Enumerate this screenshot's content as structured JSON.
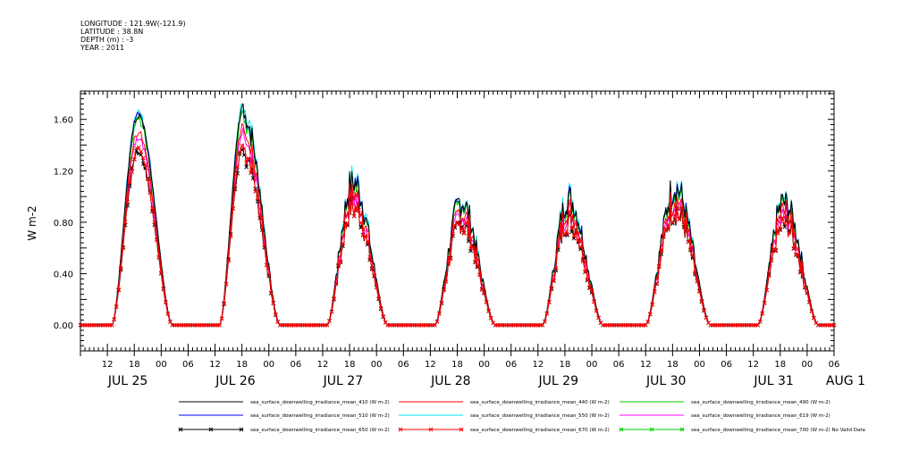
{
  "header": {
    "longitude": "LONGITUDE : 121.9W(-121.9)",
    "latitude": "LATITUDE : 38.8N",
    "depth": "DEPTH (m) : -3",
    "year": "YEAR : 2011"
  },
  "chart_data": {
    "type": "line",
    "title": "",
    "xlabel": "",
    "ylabel": "W m-2",
    "ylim": [
      -0.2,
      1.82
    ],
    "yticks": [
      "0.00",
      "0.40",
      "0.80",
      "1.20",
      "1.60"
    ],
    "ytick_values": [
      0.0,
      0.4,
      0.8,
      1.2,
      1.6
    ],
    "xlim_hours": [
      6,
      174
    ],
    "xtick_hour_labels": [
      {
        "h": 12,
        "label": "12"
      },
      {
        "h": 18,
        "label": "18"
      },
      {
        "h": 24,
        "label": "00"
      },
      {
        "h": 30,
        "label": "06"
      },
      {
        "h": 36,
        "label": "12"
      },
      {
        "h": 42,
        "label": "18"
      },
      {
        "h": 48,
        "label": "00"
      },
      {
        "h": 54,
        "label": "06"
      },
      {
        "h": 60,
        "label": "12"
      },
      {
        "h": 66,
        "label": "18"
      },
      {
        "h": 72,
        "label": "00"
      },
      {
        "h": 78,
        "label": "06"
      },
      {
        "h": 84,
        "label": "12"
      },
      {
        "h": 90,
        "label": "18"
      },
      {
        "h": 96,
        "label": "00"
      },
      {
        "h": 102,
        "label": "06"
      },
      {
        "h": 108,
        "label": "12"
      },
      {
        "h": 114,
        "label": "18"
      },
      {
        "h": 120,
        "label": "00"
      },
      {
        "h": 126,
        "label": "06"
      },
      {
        "h": 132,
        "label": "12"
      },
      {
        "h": 138,
        "label": "18"
      },
      {
        "h": 144,
        "label": "00"
      },
      {
        "h": 150,
        "label": "06"
      },
      {
        "h": 156,
        "label": "12"
      },
      {
        "h": 162,
        "label": "18"
      },
      {
        "h": 168,
        "label": "00"
      },
      {
        "h": 174,
        "label": "06"
      }
    ],
    "xtick_day_labels": [
      {
        "h": 9,
        "label": "JUL 25"
      },
      {
        "h": 33,
        "label": "JUL 26"
      },
      {
        "h": 57,
        "label": "JUL 27"
      },
      {
        "h": 81,
        "label": "JUL 28"
      },
      {
        "h": 105,
        "label": "JUL 29"
      },
      {
        "h": 129,
        "label": "JUL 30"
      },
      {
        "h": 153,
        "label": "JUL 31"
      },
      {
        "h": 169,
        "label": "AUG  1"
      }
    ],
    "days": [
      {
        "day": "JUL 25",
        "rise_h": 13.0,
        "set_h": 26.5,
        "peak_h": 18.8,
        "peak_410": 1.63,
        "shape": "smooth"
      },
      {
        "day": "JUL 26",
        "rise_h": 37.0,
        "set_h": 50.5,
        "peak_h": 42.4,
        "peak_410": 1.7,
        "shape": "early"
      },
      {
        "day": "JUL 27",
        "rise_h": 61.0,
        "set_h": 74.5,
        "peak_h": 66.8,
        "peak_410": 1.2,
        "shape": "noisy"
      },
      {
        "day": "JUL 28",
        "rise_h": 85.0,
        "set_h": 98.5,
        "peak_h": 90.8,
        "peak_410": 1.03,
        "shape": "noisy"
      },
      {
        "day": "JUL 29",
        "rise_h": 109.0,
        "set_h": 122.5,
        "peak_h": 114.8,
        "peak_410": 1.06,
        "shape": "noisy"
      },
      {
        "day": "JUL 30",
        "rise_h": 132.0,
        "set_h": 146.5,
        "peak_h": 138.5,
        "peak_410": 1.15,
        "shape": "noisy"
      },
      {
        "day": "JUL 31",
        "rise_h": 157.0,
        "set_h": 170.5,
        "peak_h": 162.8,
        "peak_410": 1.03,
        "shape": "noisy"
      }
    ],
    "series": [
      {
        "name": "sea_surface_downwelling_irradiance_mean_410 (W m-2)",
        "color": "#000000",
        "scale": 1.0,
        "marker": "none"
      },
      {
        "name": "sea_surface_downwelling_irradiance_mean_440 (W m-2)",
        "color": "#ff0000",
        "scale": 0.92,
        "marker": "none"
      },
      {
        "name": "sea_surface_downwelling_irradiance_mean_490 (W m-2)",
        "color": "#00cc00",
        "scale": 0.98,
        "marker": "none"
      },
      {
        "name": "sea_surface_downwelling_irradiance_mean_510 (W m-2)",
        "color": "#0000ff",
        "scale": 1.0,
        "marker": "none"
      },
      {
        "name": "sea_surface_downwelling_irradiance_mean_550 (W m-2)",
        "color": "#00e5ee",
        "scale": 1.02,
        "marker": "none"
      },
      {
        "name": "sea_surface_downwelling_irradiance_mean_619 (W m-2)",
        "color": "#ff00ff",
        "scale": 0.89,
        "marker": "none"
      },
      {
        "name": "sea_surface_downwelling_irradiance_mean_650 (W m-2)",
        "color": "#000000",
        "scale": 0.82,
        "marker": "x"
      },
      {
        "name": "sea_surface_downwelling_irradiance_mean_670 (W m-2)",
        "color": "#ff0000",
        "scale": 0.83,
        "marker": "x"
      },
      {
        "name": "sea_surface_downwelling_irradiance_mean_700 (W m-2) No Valid Data",
        "color": "#00cc00",
        "scale": 0,
        "marker": "x"
      }
    ],
    "legend": "bottom"
  }
}
